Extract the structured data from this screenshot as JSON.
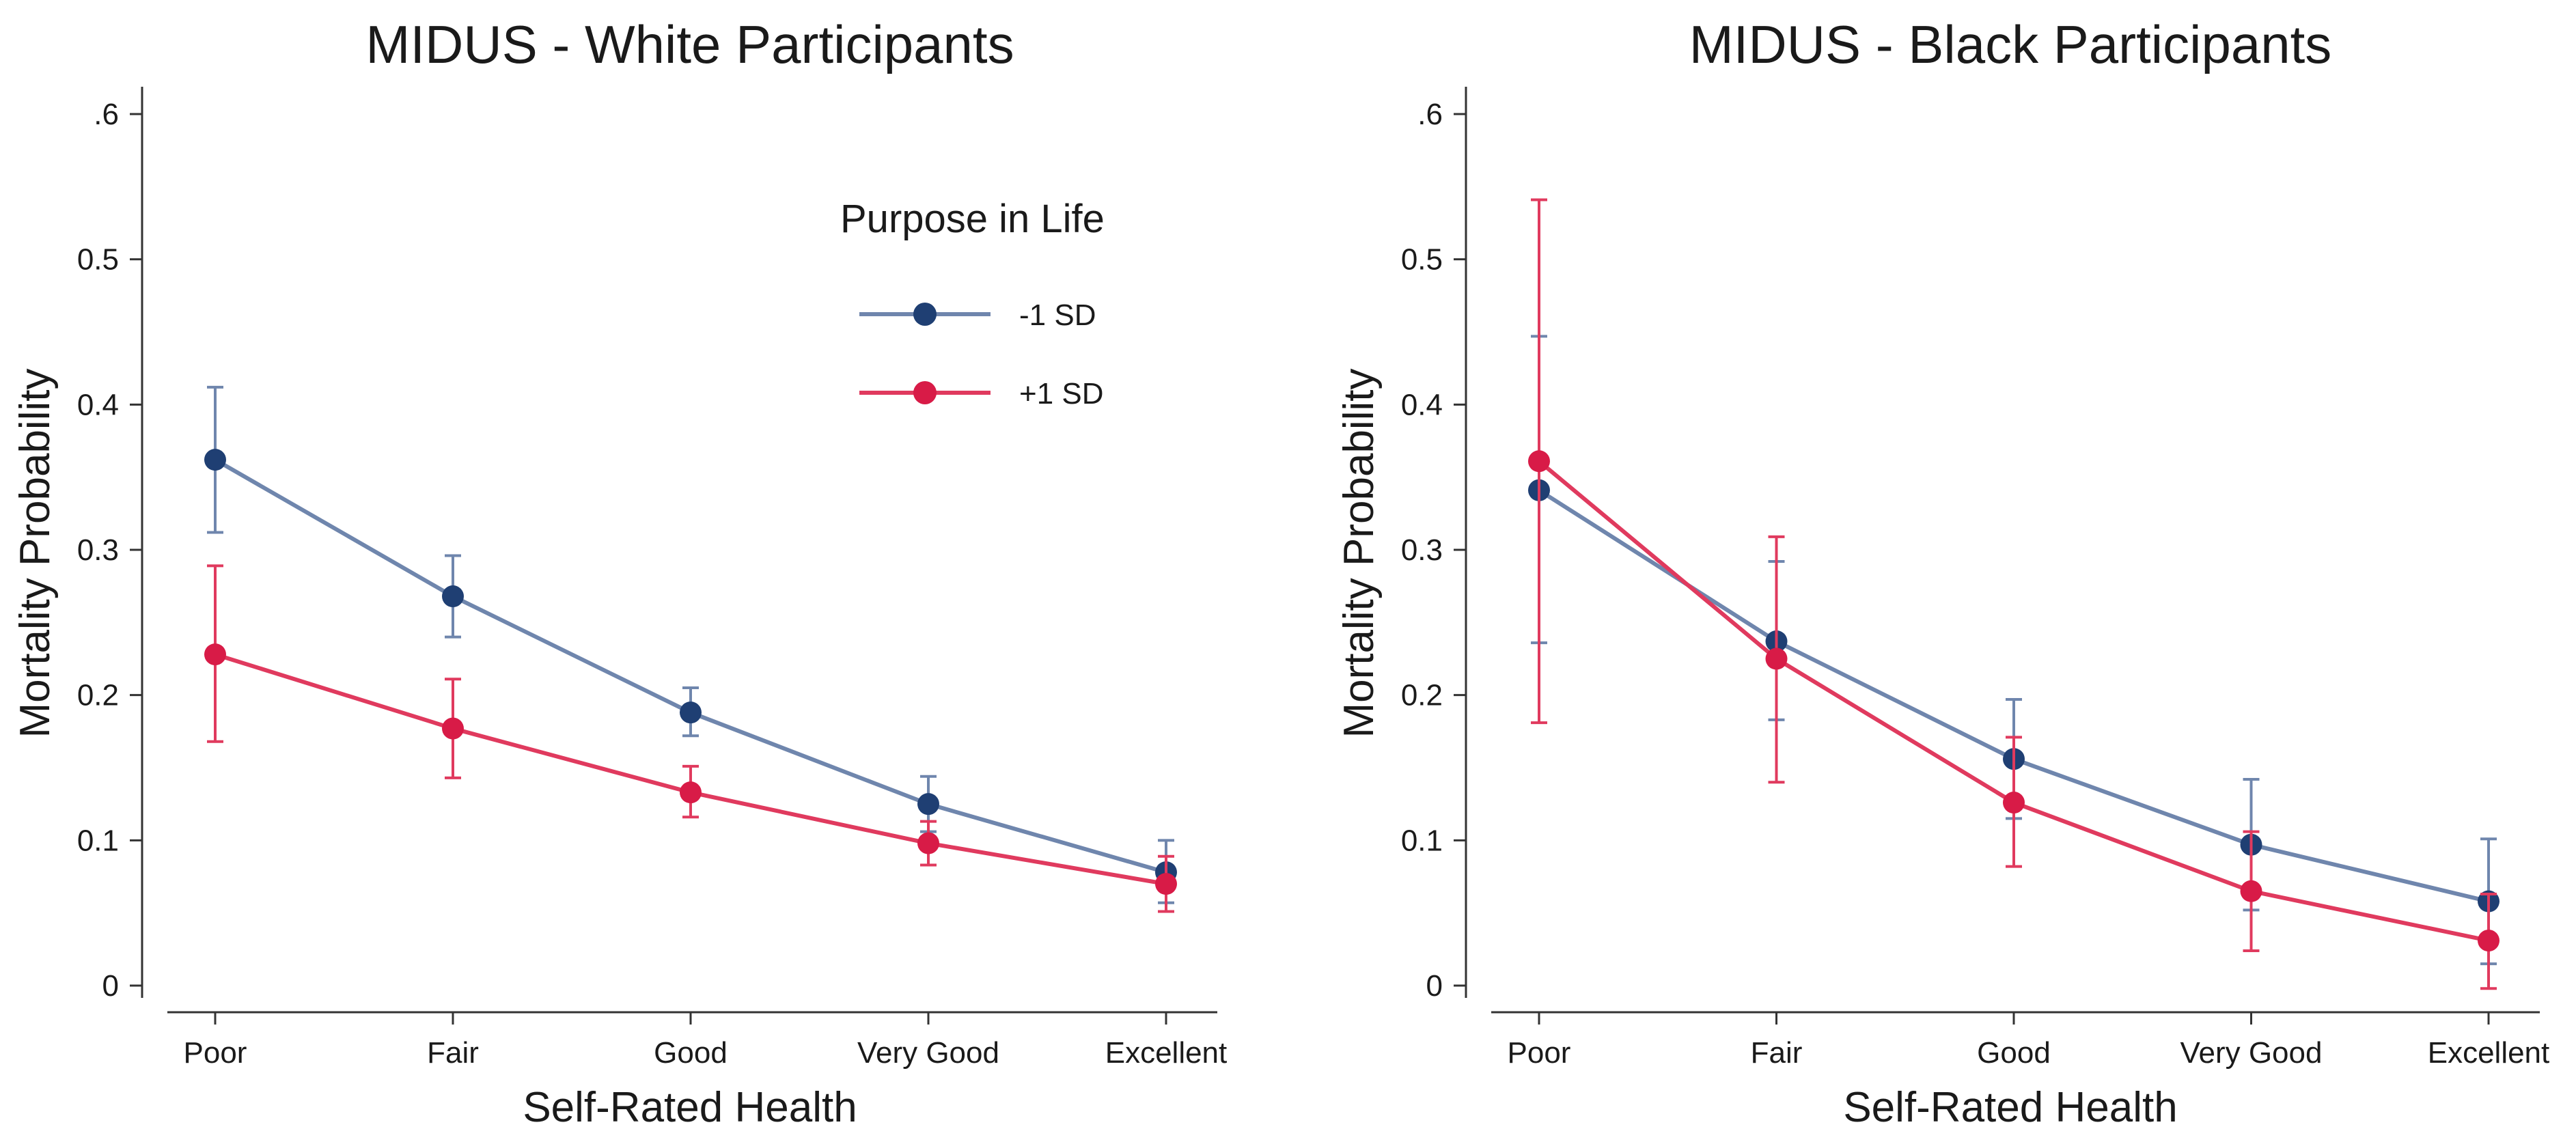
{
  "legend": {
    "title": "Purpose in Life",
    "entries": [
      {
        "name": "-1 SD",
        "color": "#1f3f73"
      },
      {
        "name": "+1 SD",
        "color": "#d81b47"
      }
    ]
  },
  "chart_data": [
    {
      "type": "line",
      "title": "MIDUS - White Participants",
      "xlabel": "Self-Rated Health",
      "ylabel": "Mortality Probability",
      "categories": [
        "Poor",
        "Fair",
        "Good",
        "Very Good",
        "Excellent"
      ],
      "ylim": [
        0,
        0.6
      ],
      "yticks": [
        0,
        0.1,
        0.2,
        0.3,
        0.4,
        0.5,
        0.6
      ],
      "ytick_labels": [
        "0",
        "0.1",
        "0.2",
        "0.3",
        "0.4",
        "0.5",
        ".6"
      ],
      "legend_position": "top-right",
      "series": [
        {
          "name": "-1 SD",
          "color": "#1f3f73",
          "line_color": "#6f86ad",
          "values": [
            0.362,
            0.268,
            0.188,
            0.125,
            0.078
          ],
          "lower": [
            0.312,
            0.24,
            0.172,
            0.106,
            0.057
          ],
          "upper": [
            0.412,
            0.296,
            0.205,
            0.144,
            0.1
          ]
        },
        {
          "name": "+1 SD",
          "color": "#d81b47",
          "line_color": "#e03a5e",
          "values": [
            0.228,
            0.177,
            0.133,
            0.098,
            0.07
          ],
          "lower": [
            0.168,
            0.143,
            0.116,
            0.083,
            0.051
          ],
          "upper": [
            0.289,
            0.211,
            0.151,
            0.113,
            0.089
          ]
        }
      ]
    },
    {
      "type": "line",
      "title": "MIDUS - Black Participants",
      "xlabel": "Self-Rated Health",
      "ylabel": "Mortality Probability",
      "categories": [
        "Poor",
        "Fair",
        "Good",
        "Very Good",
        "Excellent"
      ],
      "ylim": [
        0,
        0.6
      ],
      "yticks": [
        0,
        0.1,
        0.2,
        0.3,
        0.4,
        0.5,
        0.6
      ],
      "ytick_labels": [
        "0",
        "0.1",
        "0.2",
        "0.3",
        "0.4",
        "0.5",
        ".6"
      ],
      "legend_position": "none",
      "series": [
        {
          "name": "-1 SD",
          "color": "#1f3f73",
          "line_color": "#6f86ad",
          "values": [
            0.341,
            0.237,
            0.156,
            0.097,
            0.058
          ],
          "lower": [
            0.236,
            0.183,
            0.115,
            0.052,
            0.015
          ],
          "upper": [
            0.447,
            0.292,
            0.197,
            0.142,
            0.101
          ]
        },
        {
          "name": "+1 SD",
          "color": "#d81b47",
          "line_color": "#e03a5e",
          "values": [
            0.361,
            0.225,
            0.126,
            0.065,
            0.031
          ],
          "lower": [
            0.181,
            0.14,
            0.082,
            0.024,
            -0.002
          ],
          "upper": [
            0.541,
            0.309,
            0.171,
            0.106,
            0.063
          ]
        }
      ]
    }
  ]
}
